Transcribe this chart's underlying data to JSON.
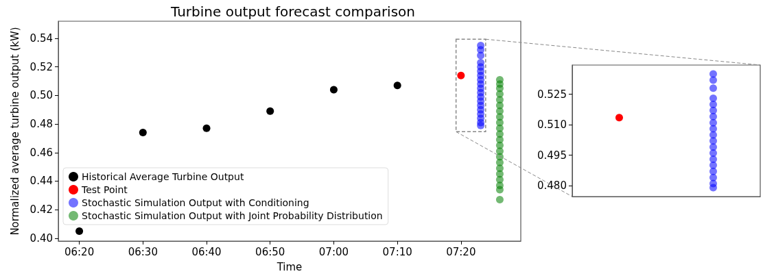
{
  "chart_data": [
    {
      "type": "scatter",
      "title": "Turbine output forecast comparison",
      "xlabel": "Time",
      "ylabel": "Normalized average turbine output (kW)",
      "legend": "bottom left",
      "marker": "circle",
      "xlim": [
        6.2783,
        7.49
      ],
      "xticks": [
        {
          "value": 6.3333,
          "label": "06:20"
        },
        {
          "value": 6.5,
          "label": "06:30"
        },
        {
          "value": 6.6667,
          "label": "06:40"
        },
        {
          "value": 6.8333,
          "label": "06:50"
        },
        {
          "value": 7,
          "label": "07:00"
        },
        {
          "value": 7.1667,
          "label": "07:10"
        },
        {
          "value": 7.3333,
          "label": "07:20"
        }
      ],
      "ylim": [
        0.398,
        0.552
      ],
      "yticks": [
        {
          "value": 0.4,
          "label": "0.40"
        },
        0.42,
        0.44,
        0.46,
        0.48,
        {
          "value": 0.5,
          "label": "0.50"
        },
        0.52,
        0.54
      ],
      "series": [
        {
          "name": "Historical Average Turbine Output",
          "color": "#000000",
          "x": [
            6.3333,
            6.5,
            6.6667,
            6.8333,
            7,
            7.1667
          ],
          "values": [
            0.405,
            0.474,
            0.477,
            0.489,
            0.504,
            0.507
          ]
        },
        {
          "name": "Test Point",
          "color": "#ff0000",
          "x": [
            7.3333
          ],
          "values": [
            0.514
          ]
        },
        {
          "name": "Stochastic Simulation Output with Conditioning",
          "color": "#0000ff",
          "x": [
            7.385,
            7.385,
            7.385,
            7.385,
            7.385,
            7.385,
            7.385,
            7.385,
            7.385,
            7.385,
            7.385,
            7.385,
            7.385,
            7.385,
            7.385,
            7.385,
            7.385,
            7.385,
            7.385
          ],
          "values": [
            0.535,
            0.532,
            0.528,
            0.523,
            0.52,
            0.517,
            0.514,
            0.511,
            0.508,
            0.505,
            0.502,
            0.499,
            0.496,
            0.493,
            0.49,
            0.487,
            0.484,
            0.481,
            0.479
          ]
        },
        {
          "name": "Stochastic Simulation Output with Joint Probability Distribution",
          "color": "#008000",
          "x": [
            7.435,
            7.435,
            7.435,
            7.435,
            7.435,
            7.435,
            7.435,
            7.435,
            7.435,
            7.435,
            7.435,
            7.435,
            7.435,
            7.435,
            7.435,
            7.435,
            7.435,
            7.435,
            7.435,
            7.435,
            7.435,
            7.435
          ],
          "values": [
            0.511,
            0.508,
            0.505,
            0.501,
            0.497,
            0.493,
            0.489,
            0.485,
            0.481,
            0.477,
            0.473,
            0.469,
            0.465,
            0.461,
            0.457,
            0.453,
            0.449,
            0.445,
            0.441,
            0.437,
            0.434,
            0.427
          ]
        }
      ]
    },
    {
      "type": "scatter",
      "marker": "circle",
      "tick_labels": "y",
      "categories": [
        null,
        null
      ],
      "ylim": [
        0.4746,
        0.5394
      ],
      "yticks": [
        {
          "value": 0.48,
          "label": "0.480"
        },
        {
          "value": 0.495,
          "label": "0.495"
        },
        {
          "value": 0.51,
          "label": "0.510"
        },
        {
          "value": 0.525,
          "label": "0.525"
        }
      ],
      "series": [
        {
          "color": "#ff0000",
          "values": [
            0.5135,
            null
          ]
        },
        {
          "color": "#0000ff",
          "values": [
            null,
            0.535
          ]
        },
        {
          "color": "#0000ff",
          "values": [
            null,
            0.532
          ]
        },
        {
          "color": "#0000ff",
          "values": [
            null,
            0.528
          ]
        },
        {
          "color": "#0000ff",
          "values": [
            null,
            0.523
          ]
        },
        {
          "color": "#0000ff",
          "values": [
            null,
            0.52
          ]
        },
        {
          "color": "#0000ff",
          "values": [
            null,
            0.517
          ]
        },
        {
          "color": "#0000ff",
          "values": [
            null,
            0.514
          ]
        },
        {
          "color": "#0000ff",
          "values": [
            null,
            0.511
          ]
        },
        {
          "color": "#0000ff",
          "values": [
            null,
            0.508
          ]
        },
        {
          "color": "#0000ff",
          "values": [
            null,
            0.505
          ]
        },
        {
          "color": "#0000ff",
          "values": [
            null,
            0.502
          ]
        },
        {
          "color": "#0000ff",
          "values": [
            null,
            0.499
          ]
        },
        {
          "color": "#0000ff",
          "values": [
            null,
            0.496
          ]
        },
        {
          "color": "#0000ff",
          "values": [
            null,
            0.493
          ]
        },
        {
          "color": "#0000ff",
          "values": [
            null,
            0.49
          ]
        },
        {
          "color": "#0000ff",
          "values": [
            null,
            0.487
          ]
        },
        {
          "color": "#0000ff",
          "values": [
            null,
            0.484
          ]
        },
        {
          "color": "#0000ff",
          "values": [
            null,
            0.481
          ]
        },
        {
          "color": "#0000ff",
          "values": [
            null,
            0.479
          ]
        }
      ]
    }
  ]
}
